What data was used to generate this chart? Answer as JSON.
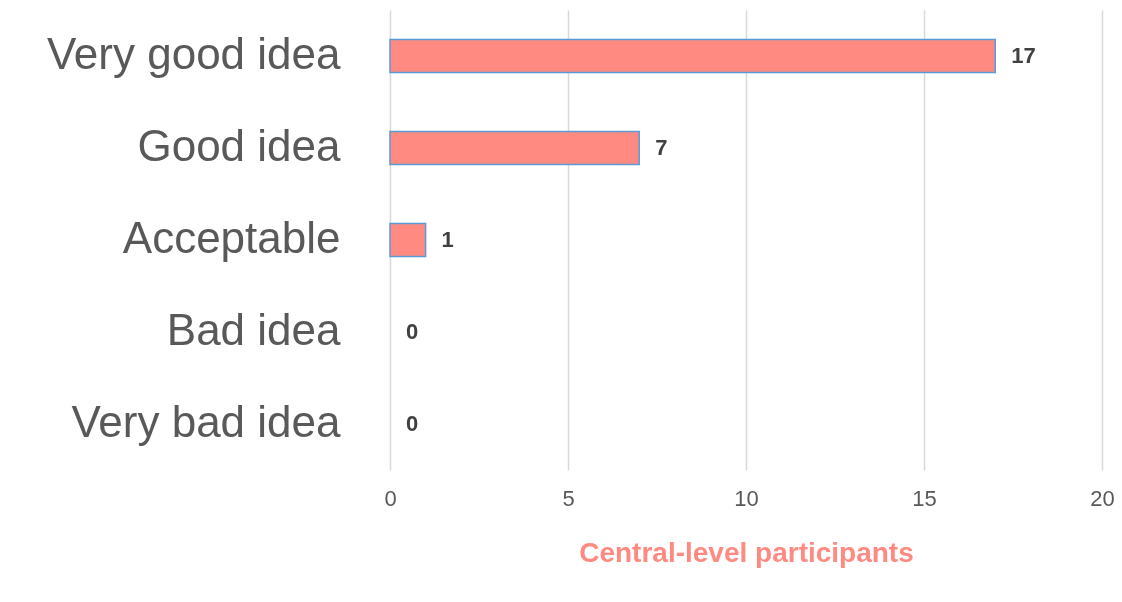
{
  "chart_data": {
    "type": "bar",
    "orientation": "horizontal",
    "xlabel": "Central-level participants",
    "categories": [
      "Very good idea",
      "Good idea",
      "Acceptable",
      "Bad idea",
      "Very bad idea"
    ],
    "values": [
      17,
      7,
      1,
      0,
      0
    ],
    "color": "#ff8a82",
    "xlim": [
      0,
      20
    ],
    "xticks": [
      0,
      5,
      10,
      15,
      20
    ],
    "grid": "x",
    "data_labels": true
  }
}
